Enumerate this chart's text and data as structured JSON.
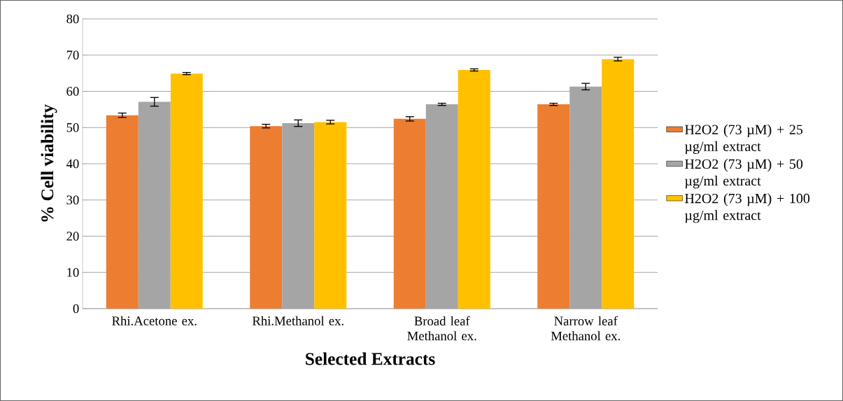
{
  "chart_data": {
    "type": "bar",
    "xlabel": "Selected Extracts",
    "ylabel": "% Cell viability",
    "categories": [
      "Rhi.Acetone ex.",
      "Rhi.Methanol ex.",
      "Broad leaf Methanol ex.",
      "Narrow leaf Methanol ex."
    ],
    "series": [
      {
        "name": "H2O2 (73 µM) + 25 µg/ml extract",
        "color": "#ed7d31",
        "values": [
          53.4,
          50.4,
          52.4,
          56.4
        ],
        "errors": [
          0.6,
          0.5,
          0.6,
          0.3
        ]
      },
      {
        "name": "H2O2 (73 µM) + 50 µg/ml extract",
        "color": "#a5a5a5",
        "values": [
          57.1,
          51.2,
          56.4,
          61.3
        ],
        "errors": [
          1.2,
          0.9,
          0.3,
          0.9
        ]
      },
      {
        "name": "H2O2 (73 µM) + 100 µg/ml extract",
        "color": "#ffc000",
        "values": [
          64.9,
          51.5,
          65.9,
          68.9
        ],
        "errors": [
          0.3,
          0.5,
          0.3,
          0.5
        ]
      }
    ],
    "ylim": [
      0,
      80
    ],
    "yticks": [
      0,
      10,
      20,
      30,
      40,
      50,
      60,
      70,
      80
    ],
    "grid": "y",
    "legend": "right"
  }
}
